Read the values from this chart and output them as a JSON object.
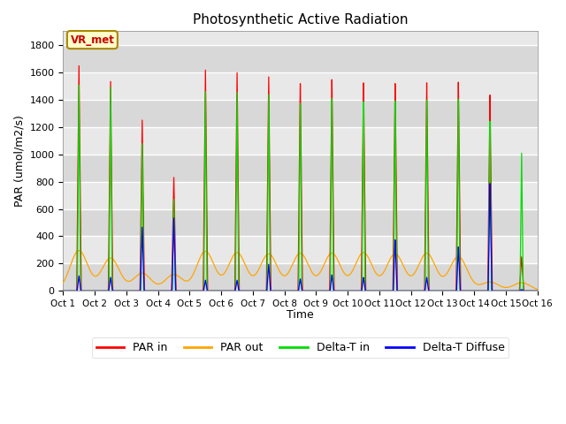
{
  "title": "Photosynthetic Active Radiation",
  "ylabel": "PAR (umol/m2/s)",
  "xlabel": "Time",
  "ylim": [
    0,
    1900
  ],
  "yticks": [
    0,
    200,
    400,
    600,
    800,
    1000,
    1200,
    1400,
    1600,
    1800
  ],
  "xtick_labels": [
    "Oct 1",
    "Oct 2",
    "Oct 3",
    "Oct 4",
    "Oct 5",
    "Oct 6",
    "Oct 7",
    "Oct 8",
    "Oct 9",
    "Oct 10",
    "Oct 11",
    "Oct 12",
    "Oct 13",
    "Oct 14",
    "Oct 15",
    "Oct 16"
  ],
  "legend_items": [
    "PAR in",
    "PAR out",
    "Delta-T in",
    "Delta-T Diffuse"
  ],
  "legend_colors": [
    "#ff0000",
    "#ffa500",
    "#00dd00",
    "#0000ff"
  ],
  "vr_met_label": "VR_met",
  "plot_bg_color": "#e8e8e8",
  "fig_bg_color": "#ffffff",
  "grid_color": "#ffffff",
  "par_in_peaks": [
    1650,
    1540,
    1260,
    840,
    1640,
    1625,
    1600,
    1555,
    1580,
    1550,
    1540,
    1540,
    1540,
    1440,
    250
  ],
  "par_out_peaks": [
    295,
    240,
    130,
    120,
    290,
    280,
    270,
    275,
    275,
    280,
    270,
    275,
    250,
    65,
    60
  ],
  "delta_t_in_peaks": [
    1510,
    1500,
    1090,
    680,
    1490,
    1490,
    1480,
    1420,
    1450,
    1420,
    1420,
    1420,
    1420,
    1250,
    1010
  ],
  "delta_t_diffuse_peaks": [
    110,
    100,
    470,
    540,
    80,
    80,
    200,
    90,
    120,
    100,
    380,
    100,
    325,
    790,
    10
  ],
  "n_days": 15,
  "pts_per_day": 288
}
